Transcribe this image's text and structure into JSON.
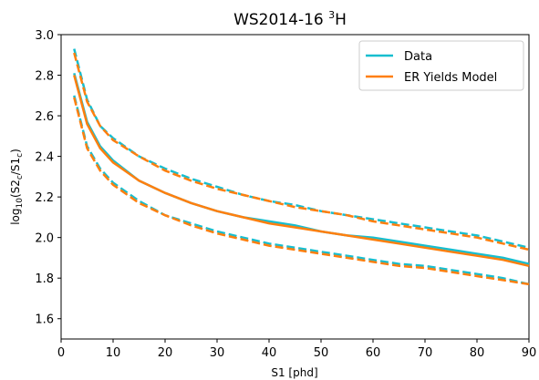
{
  "chart_data": {
    "type": "line",
    "title_main": "WS2014-16 ",
    "title_sup": "3",
    "title_tail": "H",
    "xlabel": "S1 [phd]",
    "ylabel_prefix": "log",
    "ylabel_sub": "10",
    "ylabel_body": "(S2",
    "ylabel_sub2": "c",
    "ylabel_mid": "/S1",
    "ylabel_sub3": "c",
    "ylabel_close": ")",
    "xlim": [
      0,
      90
    ],
    "ylim": [
      1.5,
      3.0
    ],
    "xticks": [
      0,
      10,
      20,
      30,
      40,
      50,
      60,
      70,
      80,
      90
    ],
    "yticks": [
      1.6,
      1.8,
      2.0,
      2.2,
      2.4,
      2.6,
      2.8,
      3.0
    ],
    "ytick_labels": [
      "1.6",
      "1.8",
      "2.0",
      "2.2",
      "2.4",
      "2.6",
      "2.8",
      "3.0"
    ],
    "grid": false,
    "legend_position": "top-right",
    "legend": [
      {
        "label": "Data",
        "color": "#17becf"
      },
      {
        "label": "ER Yields Model",
        "color": "#ff7f0e"
      }
    ],
    "x": [
      2.5,
      5,
      7.5,
      10,
      15,
      20,
      25,
      30,
      35,
      40,
      45,
      50,
      55,
      60,
      65,
      70,
      75,
      80,
      85,
      90
    ],
    "series": [
      {
        "name": "Data",
        "role": "upper",
        "color": "#17becf",
        "style": "dashed",
        "values": [
          2.93,
          2.68,
          2.55,
          2.49,
          2.4,
          2.34,
          2.29,
          2.25,
          2.21,
          2.18,
          2.16,
          2.13,
          2.11,
          2.09,
          2.07,
          2.05,
          2.03,
          2.01,
          1.98,
          1.95
        ]
      },
      {
        "name": "Data",
        "role": "median",
        "color": "#17becf",
        "style": "solid",
        "values": [
          2.81,
          2.57,
          2.45,
          2.38,
          2.28,
          2.22,
          2.17,
          2.13,
          2.1,
          2.08,
          2.06,
          2.03,
          2.01,
          2.0,
          1.98,
          1.96,
          1.94,
          1.92,
          1.9,
          1.87
        ]
      },
      {
        "name": "Data",
        "role": "lower",
        "color": "#17becf",
        "style": "dashed",
        "values": [
          2.7,
          2.45,
          2.34,
          2.27,
          2.18,
          2.11,
          2.07,
          2.03,
          2.0,
          1.97,
          1.95,
          1.93,
          1.91,
          1.89,
          1.87,
          1.86,
          1.84,
          1.82,
          1.8,
          1.77
        ]
      },
      {
        "name": "ER Yields Model",
        "role": "upper",
        "color": "#ff7f0e",
        "style": "dashed",
        "values": [
          2.91,
          2.67,
          2.55,
          2.48,
          2.4,
          2.33,
          2.28,
          2.24,
          2.21,
          2.18,
          2.15,
          2.13,
          2.11,
          2.08,
          2.06,
          2.04,
          2.02,
          2.0,
          1.97,
          1.94
        ]
      },
      {
        "name": "ER Yields Model",
        "role": "median",
        "color": "#ff7f0e",
        "style": "solid",
        "values": [
          2.8,
          2.56,
          2.44,
          2.37,
          2.28,
          2.22,
          2.17,
          2.13,
          2.1,
          2.07,
          2.05,
          2.03,
          2.01,
          1.99,
          1.97,
          1.95,
          1.93,
          1.91,
          1.89,
          1.86
        ]
      },
      {
        "name": "ER Yields Model",
        "role": "lower",
        "color": "#ff7f0e",
        "style": "dashed",
        "values": [
          2.69,
          2.44,
          2.33,
          2.26,
          2.17,
          2.11,
          2.06,
          2.02,
          1.99,
          1.96,
          1.94,
          1.92,
          1.9,
          1.88,
          1.86,
          1.85,
          1.83,
          1.81,
          1.79,
          1.77
        ]
      }
    ]
  }
}
